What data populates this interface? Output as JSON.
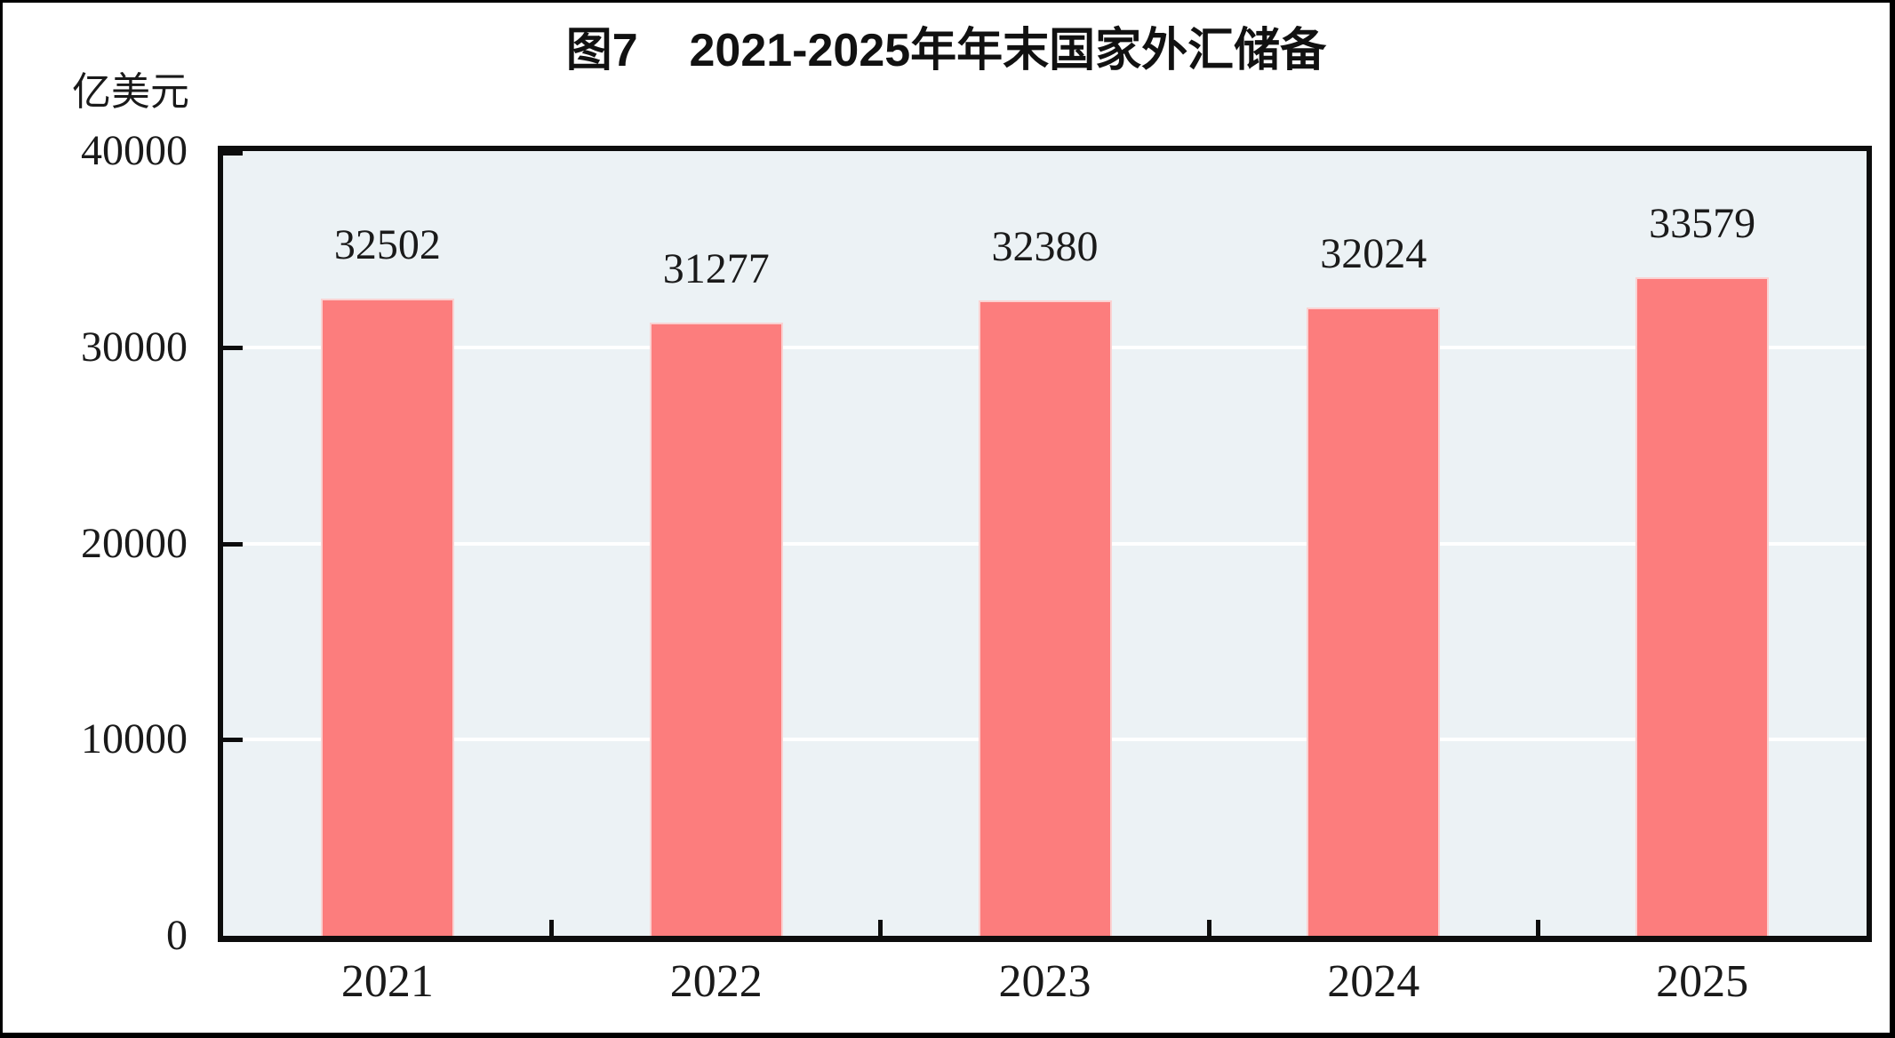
{
  "chart_data": {
    "type": "bar",
    "title": "图7    2021-2025年年末国家外汇储备",
    "ylabel": "亿美元",
    "xlabel": "",
    "categories": [
      "2021",
      "2022",
      "2023",
      "2024",
      "2025"
    ],
    "values": [
      32502,
      31277,
      32380,
      32024,
      33579
    ],
    "data_labels": [
      "32502",
      "31277",
      "32380",
      "32024",
      "33579"
    ],
    "ylim": [
      0,
      40000
    ],
    "yticks": [
      0,
      10000,
      20000,
      30000,
      40000
    ],
    "grid": "horizontal white gridlines at yticks",
    "legend_position": "none",
    "colors": {
      "bar_fill": "#FC7D7D",
      "bar_edge": "#FAD2D2",
      "plot_background": "#ECF2F5",
      "gridline": "#FFFFFF",
      "axis": "#0D0D0D",
      "text": "#1A1A1A",
      "outer_frame": "#000000"
    }
  }
}
